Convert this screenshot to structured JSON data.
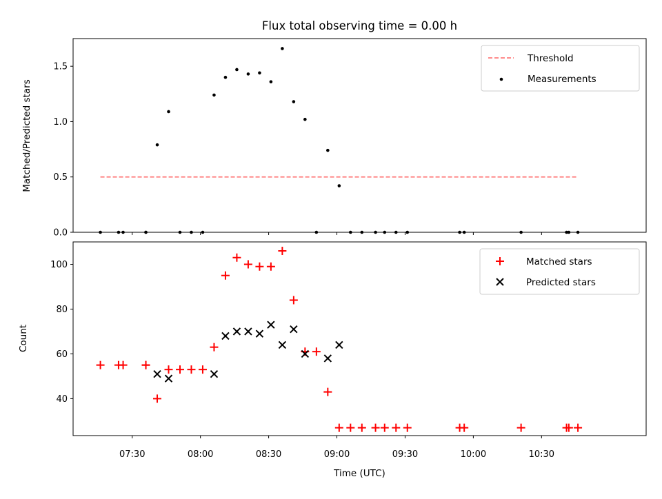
{
  "chart_data": [
    {
      "type": "scatter",
      "title": "Flux total observing time = 0.00 h",
      "xlabel": "",
      "ylabel": "Matched/Predicted stars",
      "ylim": [
        0,
        1.75
      ],
      "yticks": [
        "0.0",
        "0.5",
        "1.0",
        "1.5"
      ],
      "xlim": [
        "07:04",
        "11:16"
      ],
      "legend_position": "top-right",
      "series": [
        {
          "name": "Threshold",
          "style": "dashed-line",
          "color": "#ff7b7b",
          "x": [
            "07:16",
            "10:46"
          ],
          "y": [
            0.5,
            0.5
          ]
        },
        {
          "name": "Measurements",
          "style": "dot",
          "color": "#000000",
          "x": [
            "07:16",
            "07:24",
            "07:26",
            "07:36",
            "07:36",
            "07:41",
            "07:46",
            "07:51",
            "07:56",
            "08:01",
            "08:06",
            "08:11",
            "08:16",
            "08:21",
            "08:26",
            "08:31",
            "08:36",
            "08:41",
            "08:46",
            "08:51",
            "08:56",
            "09:01",
            "09:06",
            "09:11",
            "09:17",
            "09:21",
            "09:26",
            "09:31",
            "09:54",
            "09:56",
            "10:21",
            "10:41",
            "10:42",
            "10:46"
          ],
          "y": [
            0,
            0,
            0,
            0,
            0,
            0.79,
            1.09,
            0,
            0,
            0,
            1.24,
            1.4,
            1.47,
            1.43,
            1.44,
            1.36,
            1.66,
            1.18,
            1.02,
            0,
            0.74,
            0.42,
            0,
            0,
            0,
            0,
            0,
            0,
            0,
            0,
            0,
            0,
            0,
            0
          ]
        }
      ]
    },
    {
      "type": "scatter",
      "title": "",
      "xlabel": "Time (UTC)",
      "ylabel": "Count",
      "ylim": [
        23.5,
        110
      ],
      "yticks": [
        "40",
        "60",
        "80",
        "100"
      ],
      "xticks": [
        "07:30",
        "08:00",
        "08:30",
        "09:00",
        "09:30",
        "10:00",
        "10:30"
      ],
      "xlim": [
        "07:04",
        "11:16"
      ],
      "legend_position": "top-right",
      "series": [
        {
          "name": "Matched stars",
          "marker": "plus",
          "color": "#ff0000",
          "x": [
            "07:16",
            "07:24",
            "07:26",
            "07:36",
            "07:36",
            "07:41",
            "07:46",
            "07:51",
            "07:56",
            "08:01",
            "08:06",
            "08:11",
            "08:16",
            "08:21",
            "08:26",
            "08:31",
            "08:36",
            "08:41",
            "08:46",
            "08:51",
            "08:56",
            "09:01",
            "09:06",
            "09:11",
            "09:17",
            "09:21",
            "09:26",
            "09:31",
            "09:54",
            "09:56",
            "10:21",
            "10:41",
            "10:42",
            "10:46"
          ],
          "y": [
            55,
            55,
            55,
            55,
            55,
            40,
            53,
            53,
            53,
            53,
            63,
            95,
            103,
            100,
            99,
            99,
            106,
            84,
            61,
            61,
            43,
            27,
            27,
            27,
            27,
            27,
            27,
            27,
            27,
            27,
            27,
            27,
            27,
            27
          ]
        },
        {
          "name": "Predicted stars",
          "marker": "x",
          "color": "#000000",
          "x": [
            "07:41",
            "07:46",
            "08:06",
            "08:11",
            "08:16",
            "08:21",
            "08:26",
            "08:31",
            "08:36",
            "08:41",
            "08:46",
            "08:56",
            "09:01"
          ],
          "y": [
            51,
            49,
            51,
            68,
            70,
            70,
            69,
            73,
            64,
            71,
            60,
            58,
            64
          ]
        }
      ]
    }
  ]
}
